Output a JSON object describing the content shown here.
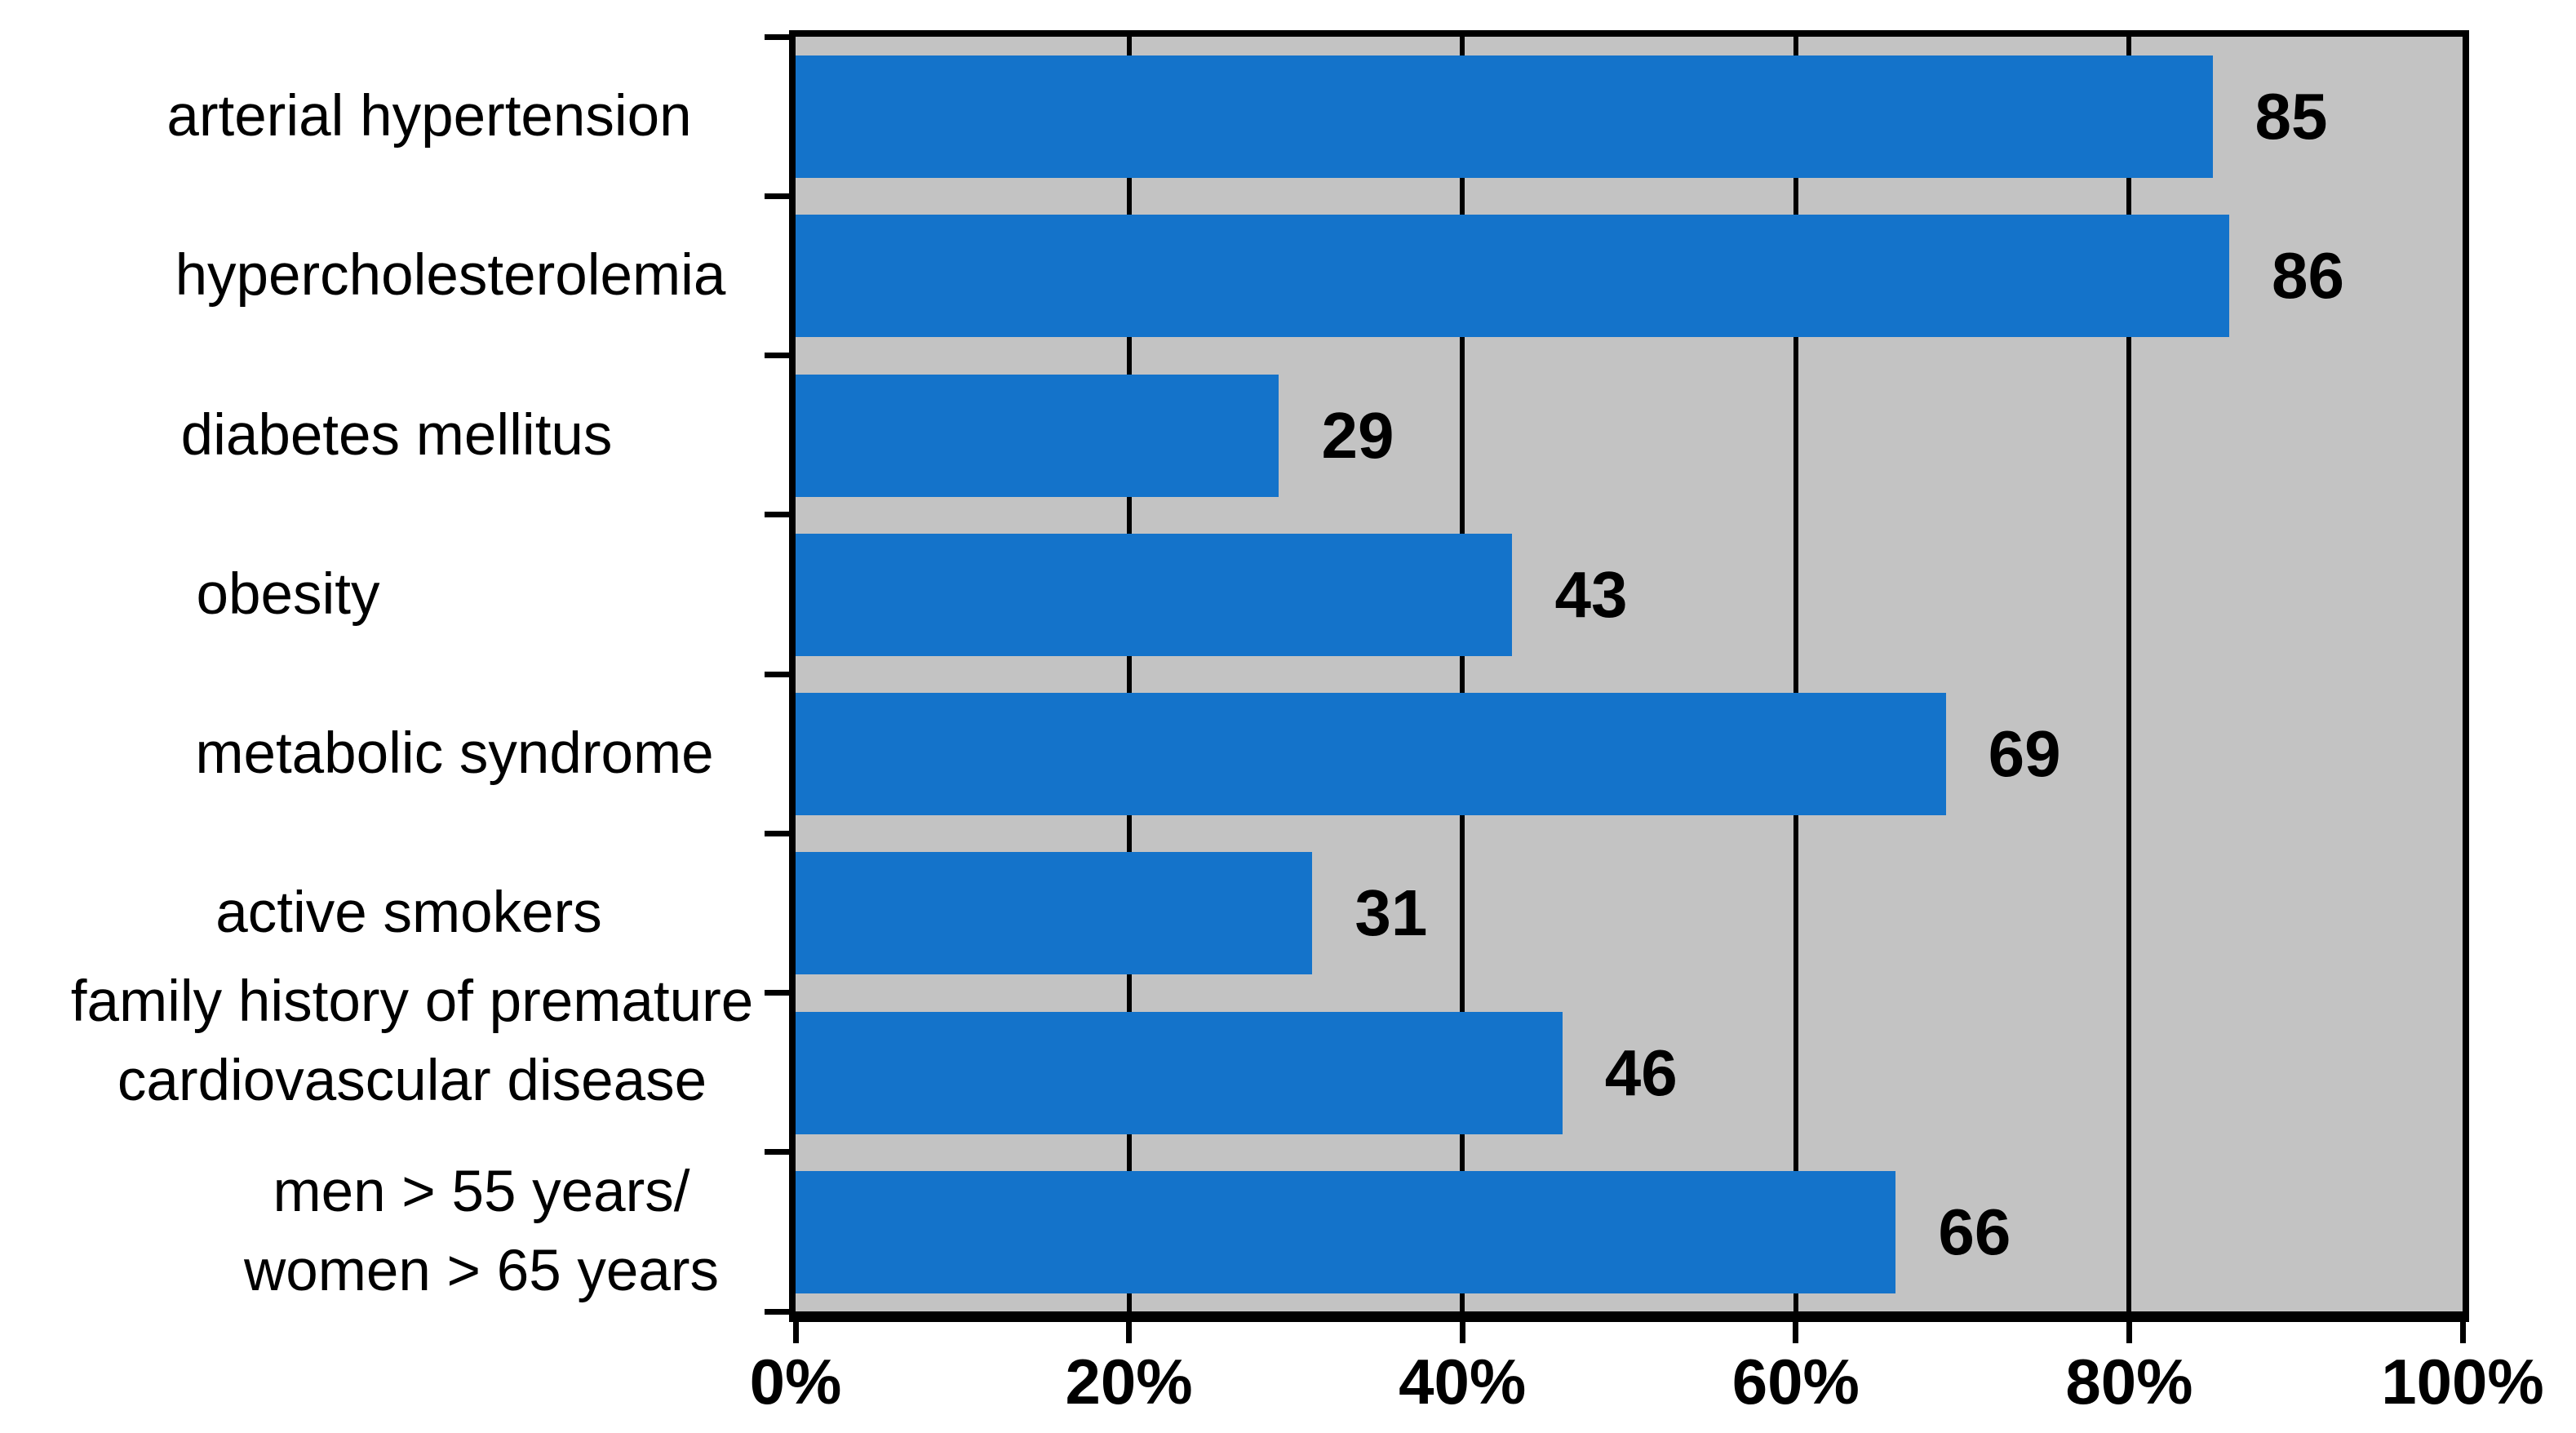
{
  "chart_data": {
    "type": "bar",
    "orientation": "horizontal",
    "title": "",
    "categories": [
      "arterial hypertension",
      "hypercholesterolemia",
      "diabetes mellitus",
      "obesity",
      "metabolic syndrome",
      "active smokers",
      "family history of premature cardiovascular disease",
      "men > 55 years/ women > 65 years"
    ],
    "categories_lines": [
      [
        "arterial hypertension"
      ],
      [
        "hypercholesterolemia"
      ],
      [
        "diabetes mellitus"
      ],
      [
        "obesity"
      ],
      [
        "metabolic syndrome"
      ],
      [
        "active smokers"
      ],
      [
        "family history of premature",
        "cardiovascular disease"
      ],
      [
        "men > 55 years/",
        "women > 65 years"
      ]
    ],
    "values": [
      85,
      86,
      29,
      43,
      69,
      31,
      46,
      66
    ],
    "value_labels": [
      "85",
      "86",
      "29",
      "43",
      "69",
      "31",
      "46",
      "66"
    ],
    "xlabel": "",
    "ylabel": "",
    "x_axis": {
      "min": 0,
      "max": 100,
      "grid_interval": 20,
      "ticks": [
        "0%",
        "20%",
        "40%",
        "60%",
        "80%",
        "100%"
      ]
    },
    "gridlines": "vertical black lines at 20% steps",
    "legend": null,
    "colors": {
      "bar": "#1473CA",
      "plot_background": "#C3C3C3",
      "page_background": "#FFFFFF",
      "axis": "#000000",
      "text": "#000000"
    }
  }
}
